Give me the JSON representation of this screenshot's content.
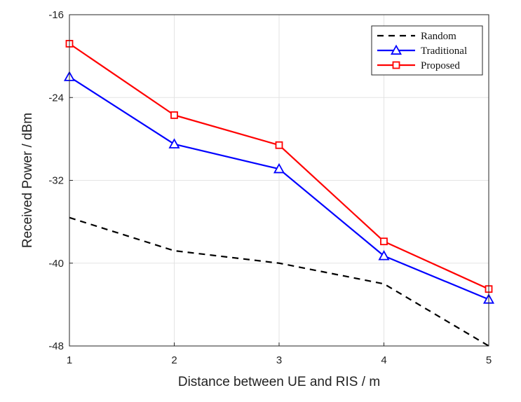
{
  "chart_data": {
    "type": "line",
    "title": "",
    "xlabel": "Distance between UE and RIS / m",
    "ylabel": "Received Power / dBm",
    "x": [
      1,
      2,
      3,
      4,
      5
    ],
    "xlim": [
      1,
      5
    ],
    "ylim": [
      -48,
      -16
    ],
    "xticks": [
      "1",
      "2",
      "3",
      "4",
      "5"
    ],
    "yticks": [
      "-16",
      "-24",
      "-32",
      "-40",
      "-48"
    ],
    "grid": true,
    "legend_position": "top-right",
    "series": [
      {
        "name": "Random",
        "values": [
          -35.6,
          -38.8,
          -40.0,
          -42.0,
          -48.0
        ],
        "color": "#000000",
        "style": "dashed",
        "marker": "none"
      },
      {
        "name": "Traditional",
        "values": [
          -22.0,
          -28.5,
          -30.9,
          -39.3,
          -43.5
        ],
        "color": "#0000ff",
        "style": "solid",
        "marker": "triangle"
      },
      {
        "name": "Proposed",
        "values": [
          -18.8,
          -25.7,
          -28.6,
          -37.9,
          -42.5
        ],
        "color": "#ff0000",
        "style": "solid",
        "marker": "square"
      }
    ]
  }
}
